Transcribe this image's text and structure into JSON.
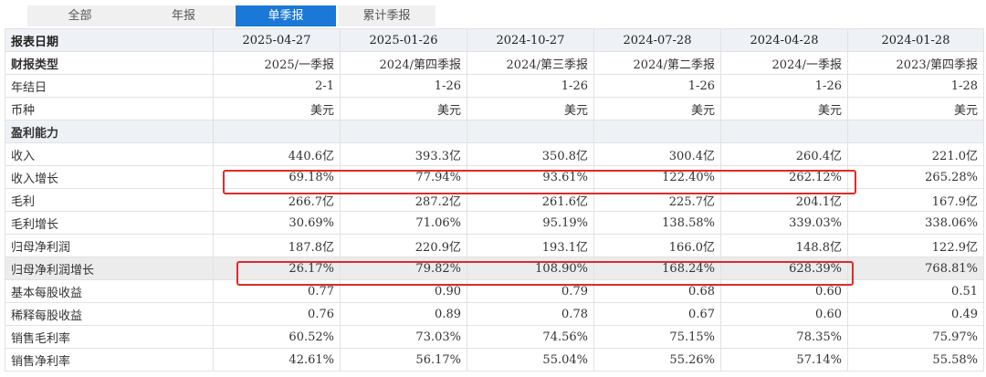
{
  "tabs": [
    {
      "label": "全部",
      "active": false
    },
    {
      "label": "年报",
      "active": false
    },
    {
      "label": "单季报",
      "active": true
    },
    {
      "label": "累计季报",
      "active": false
    }
  ],
  "table": {
    "header_label": "报表日期",
    "columns": [
      "2025-04-27",
      "2025-01-26",
      "2024-10-27",
      "2024-07-28",
      "2024-04-28",
      "2024-01-28"
    ],
    "rows": [
      {
        "label": "财报类型",
        "bold": true,
        "values": [
          "2025/一季报",
          "2024/第四季报",
          "2024/第三季报",
          "2024/第二季报",
          "2024/一季报",
          "2023/第四季报"
        ]
      },
      {
        "label": "年结日",
        "values": [
          "2-1",
          "1-26",
          "1-26",
          "1-26",
          "1-26",
          "1-28"
        ]
      },
      {
        "label": "币种",
        "values": [
          "美元",
          "美元",
          "美元",
          "美元",
          "美元",
          "美元"
        ]
      },
      {
        "label": "盈利能力",
        "section": true,
        "values": []
      },
      {
        "label": "收入",
        "values": [
          "440.6亿",
          "393.3亿",
          "350.8亿",
          "300.4亿",
          "260.4亿",
          "221.0亿"
        ]
      },
      {
        "label": "收入增长",
        "values": [
          "69.18%",
          "77.94%",
          "93.61%",
          "122.40%",
          "262.12%",
          "265.28%"
        ]
      },
      {
        "label": "毛利",
        "values": [
          "266.7亿",
          "287.2亿",
          "261.6亿",
          "225.7亿",
          "204.1亿",
          "167.9亿"
        ]
      },
      {
        "label": "毛利增长",
        "values": [
          "30.69%",
          "71.06%",
          "95.19%",
          "138.58%",
          "339.03%",
          "338.06%"
        ]
      },
      {
        "label": "归母净利润",
        "values": [
          "187.8亿",
          "220.9亿",
          "193.1亿",
          "166.0亿",
          "148.8亿",
          "122.9亿"
        ]
      },
      {
        "label": "归母净利润增长",
        "shaded": true,
        "values": [
          "26.17%",
          "79.82%",
          "108.90%",
          "168.24%",
          "628.39%",
          "768.81%"
        ]
      },
      {
        "label": "基本每股收益",
        "values": [
          "0.77",
          "0.90",
          "0.79",
          "0.68",
          "0.60",
          "0.51"
        ]
      },
      {
        "label": "稀释每股收益",
        "values": [
          "0.76",
          "0.89",
          "0.78",
          "0.67",
          "0.60",
          "0.49"
        ]
      },
      {
        "label": "销售毛利率",
        "values": [
          "60.52%",
          "73.03%",
          "74.56%",
          "75.15%",
          "78.35%",
          "75.97%"
        ]
      },
      {
        "label": "销售净利率",
        "values": [
          "42.61%",
          "56.17%",
          "55.04%",
          "55.26%",
          "57.14%",
          "55.58%"
        ]
      }
    ]
  },
  "colors": {
    "accent": "#1a78d6",
    "highlight": "#e02a2a"
  }
}
